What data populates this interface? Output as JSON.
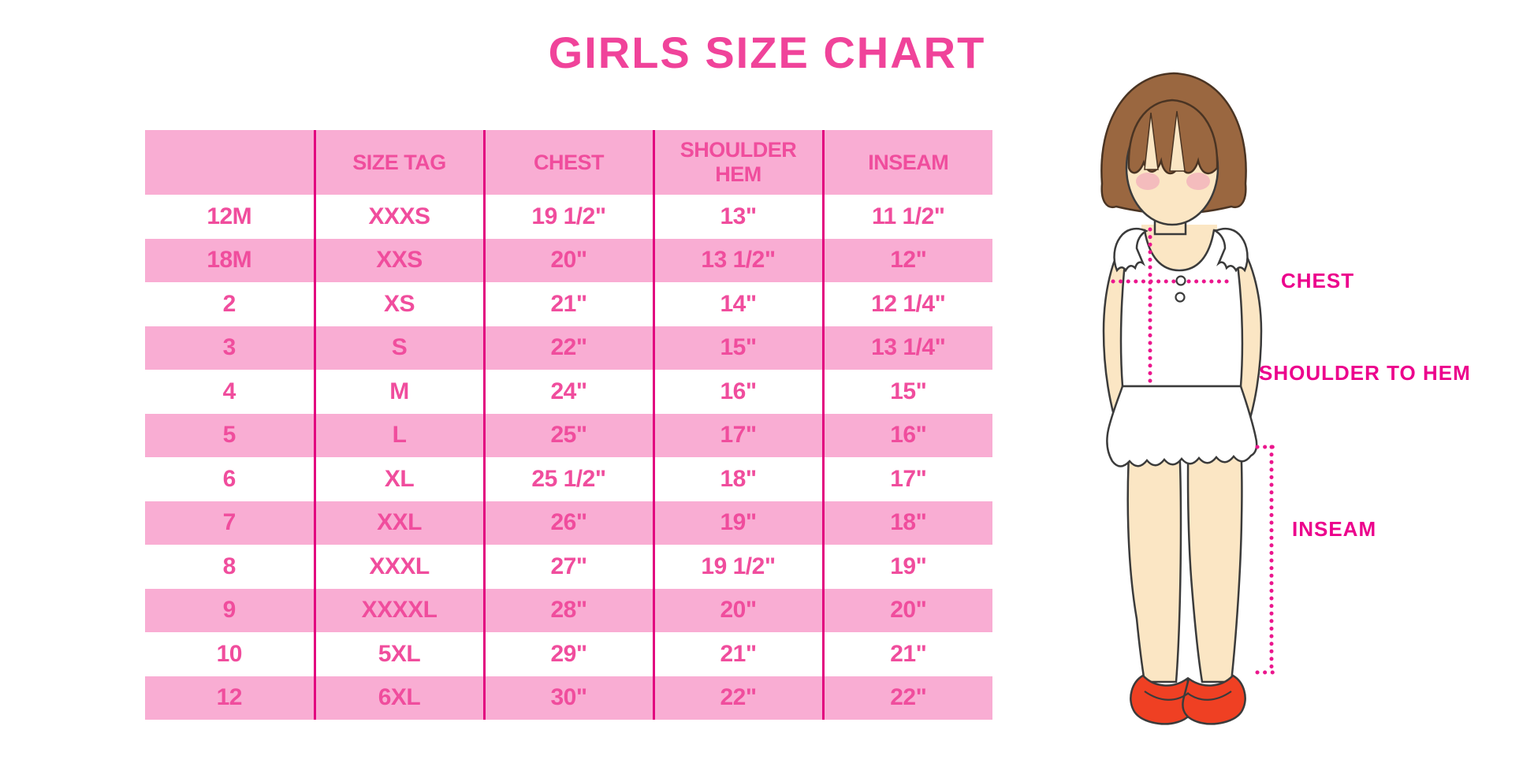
{
  "title": "GIRLS SIZE CHART",
  "colors": {
    "band_pink": "#F9ADD3",
    "grid_magenta": "#E2047F",
    "cell_text": "#F04D9D",
    "title_text": "#F0439A",
    "label_text": "#EC008C",
    "dot_line": "#EB168D",
    "hair": "#9A6740",
    "skin": "#FBE6C4",
    "shoe_red": "#EF4023"
  },
  "chart_data": {
    "type": "table",
    "title": "GIRLS SIZE CHART",
    "columns": [
      "",
      "SIZE TAG",
      "CHEST",
      "SHOULDER HEM",
      "INSEAM"
    ],
    "rows": [
      [
        "12M",
        "XXXS",
        "19 1/2\"",
        "13\"",
        "11 1/2\""
      ],
      [
        "18M",
        "XXS",
        "20\"",
        "13 1/2\"",
        "12\""
      ],
      [
        "2",
        "XS",
        "21\"",
        "14\"",
        "12 1/4\""
      ],
      [
        "3",
        "S",
        "22\"",
        "15\"",
        "13 1/4\""
      ],
      [
        "4",
        "M",
        "24\"",
        "16\"",
        "15\""
      ],
      [
        "5",
        "L",
        "25\"",
        "17\"",
        "16\""
      ],
      [
        "6",
        "XL",
        "25 1/2\"",
        "18\"",
        "17\""
      ],
      [
        "7",
        "XXL",
        "26\"",
        "19\"",
        "18\""
      ],
      [
        "8",
        "XXXL",
        "27\"",
        "19 1/2\"",
        "19\""
      ],
      [
        "9",
        "XXXXL",
        "28\"",
        "20\"",
        "20\""
      ],
      [
        "10",
        "5XL",
        "29\"",
        "21\"",
        "21\""
      ],
      [
        "12",
        "6XL",
        "30\"",
        "22\"",
        "22\""
      ]
    ],
    "layout": {
      "header_fill": "pink",
      "row_alternation": "white/pink",
      "grid": "vertical-only"
    }
  },
  "figure": {
    "description": "illustration of a girl in a white ruffled top with measurement guide lines",
    "labels": {
      "chest": "CHEST",
      "shoulder_to_hem": "SHOULDER TO HEM",
      "inseam": "INSEAM"
    }
  }
}
